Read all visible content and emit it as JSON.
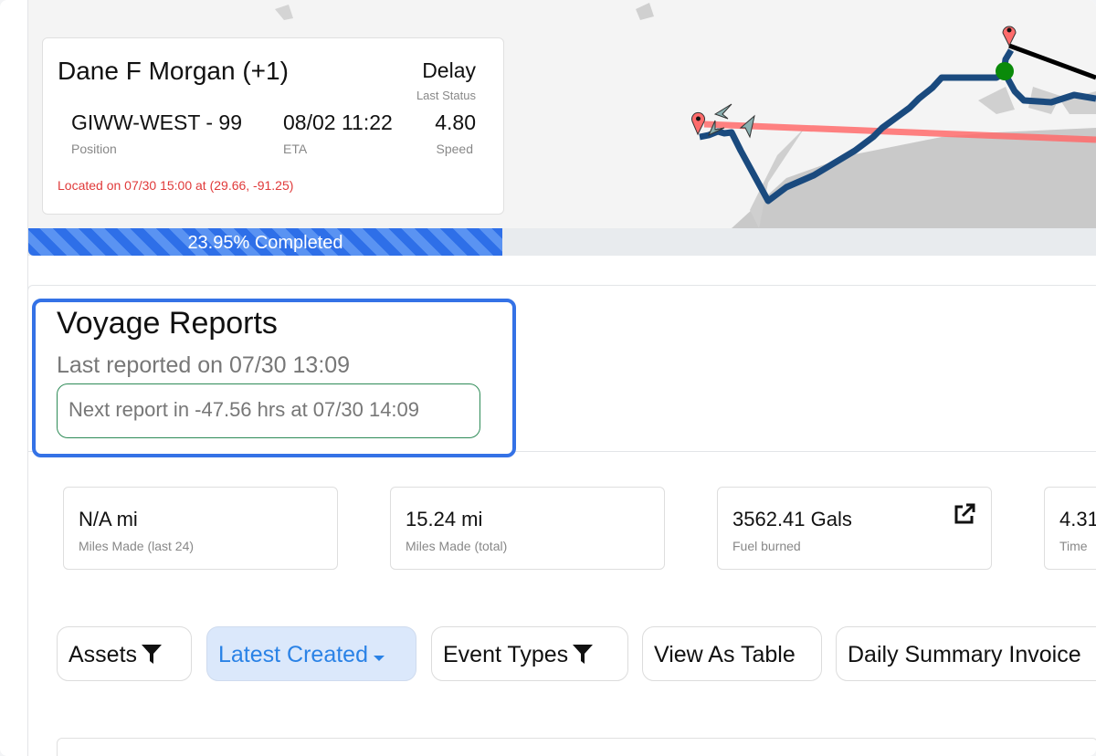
{
  "vessel_card": {
    "name": "Dane F Morgan (+1)",
    "status": "Delay",
    "status_label": "Last Status",
    "position": "GIWW-WEST - 99",
    "position_label": "Position",
    "eta": "08/02 11:22",
    "eta_label": "ETA",
    "speed": "4.80",
    "speed_label": "Speed",
    "location": "Located on 07/30 15:00 at (29.66, -91.25)"
  },
  "progress": {
    "percent": 23.95,
    "label": "23.95% Completed"
  },
  "voyage_reports": {
    "title": "Voyage Reports",
    "last_reported": "Last reported on 07/30 13:09",
    "next_report": "Next report in -47.56 hrs at 07/30 14:09"
  },
  "stats": [
    {
      "value": "N/A mi",
      "label": "Miles Made (last 24)"
    },
    {
      "value": "15.24 mi",
      "label": "Miles Made (total)"
    },
    {
      "value": "3562.41 Gals",
      "label": "Fuel burned",
      "icon": "external-link-icon"
    },
    {
      "value": "4.31",
      "label": "Time"
    }
  ],
  "filters": [
    {
      "label": "Assets",
      "icon": "filter-icon"
    },
    {
      "label": "Latest Created",
      "icon": "caret-down-icon",
      "active": true
    },
    {
      "label": "Event Types",
      "icon": "filter-icon"
    },
    {
      "label": "View As Table"
    },
    {
      "label": "Daily Summary Invoice"
    }
  ],
  "colors": {
    "accent": "#3472e6",
    "route": "#1a4a7e",
    "planned_route": "#ff6b6b",
    "current_position": "#0a8a0a",
    "progress": "#2e6fe8",
    "location_text": "#e03a3a"
  }
}
